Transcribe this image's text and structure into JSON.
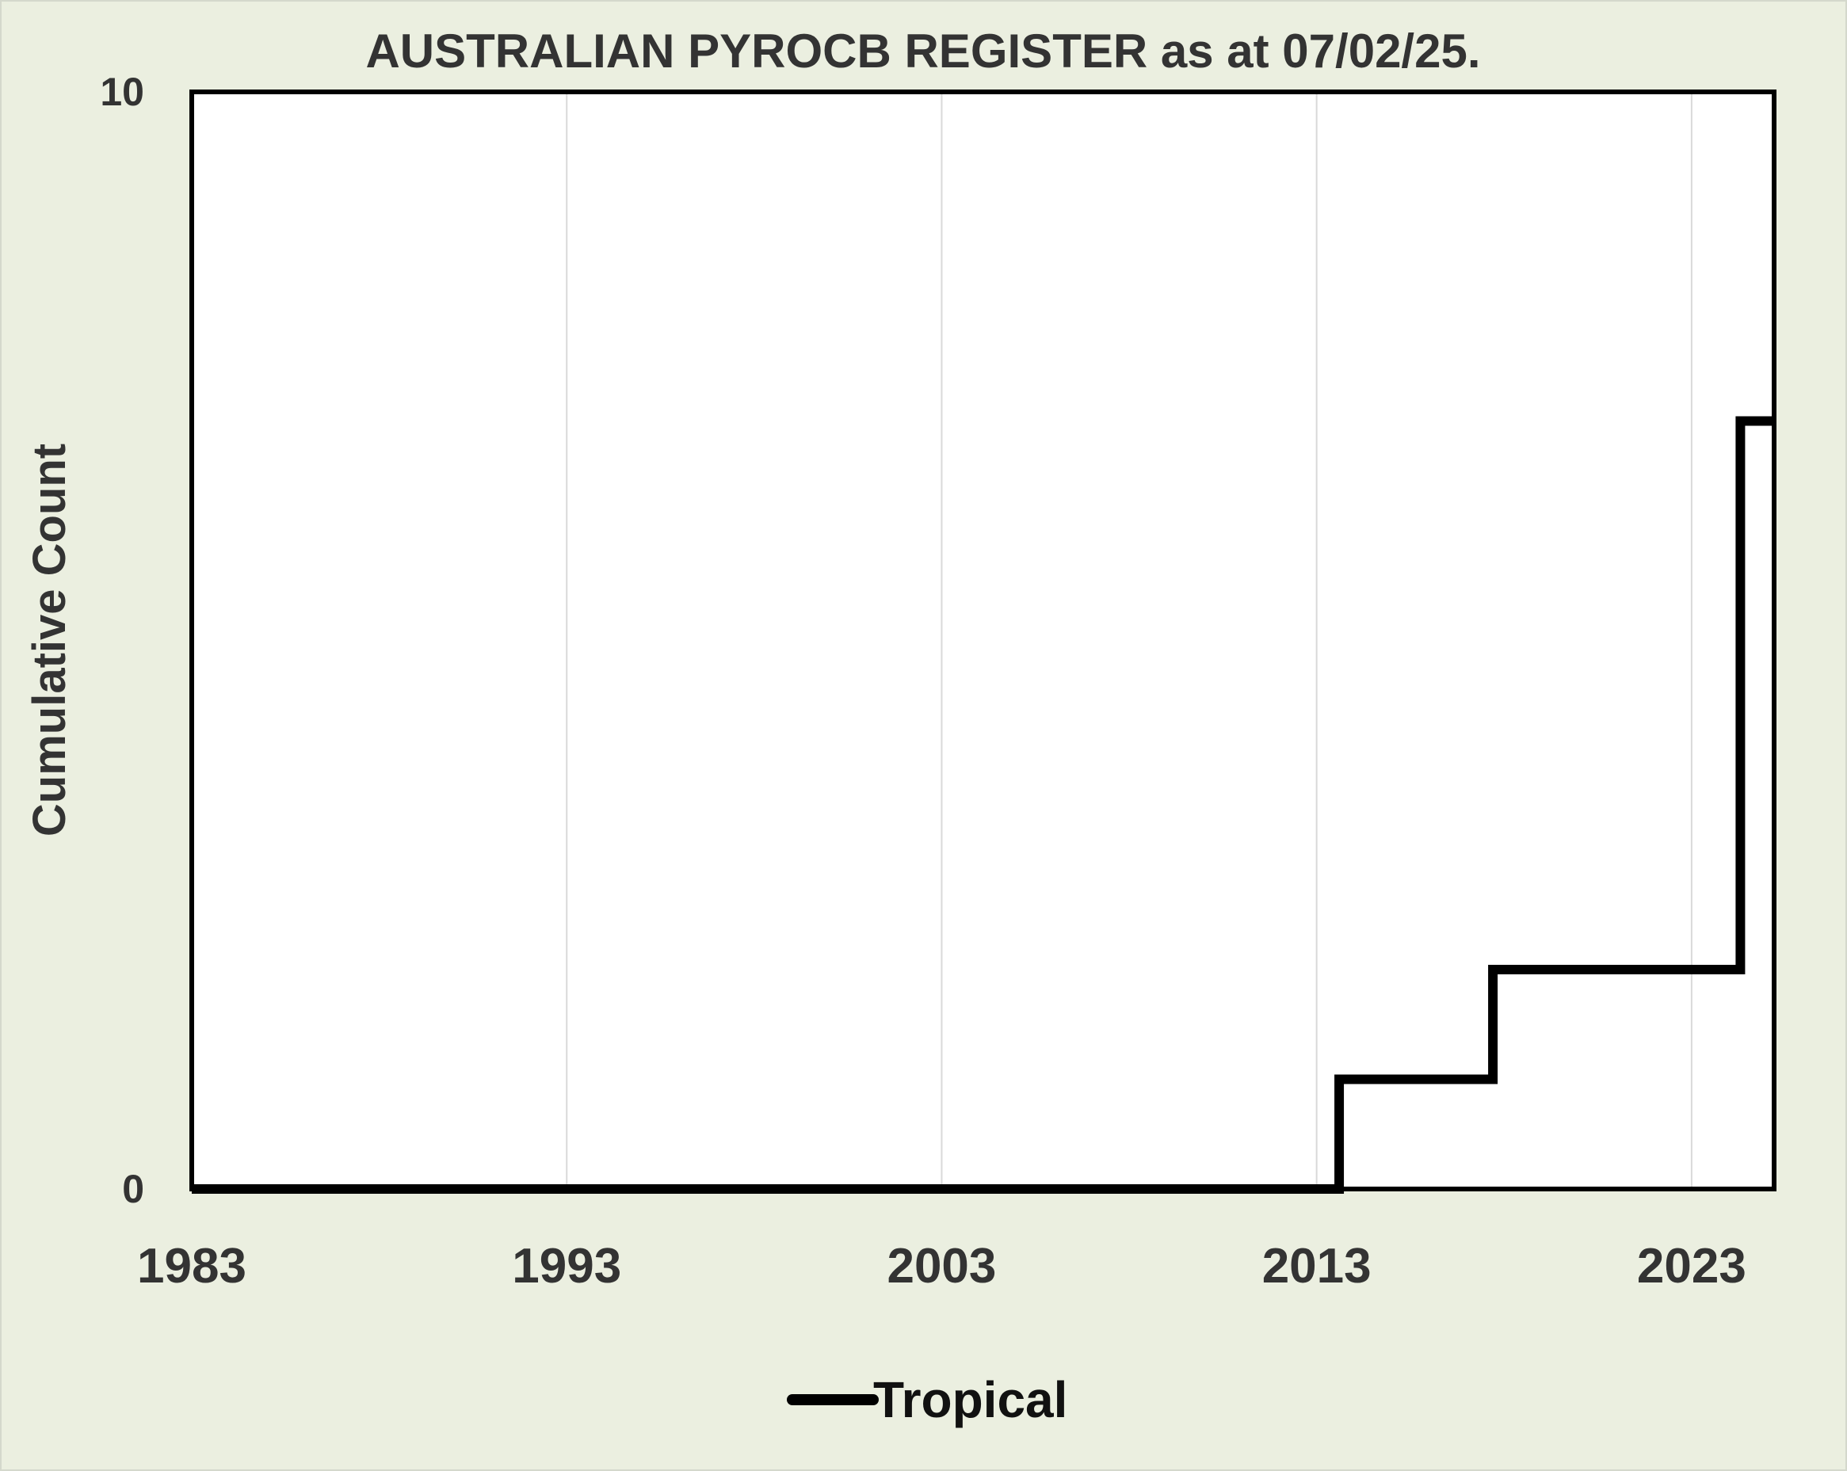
{
  "chart_data": {
    "type": "line",
    "title": "AUSTRALIAN PYROCB REGISTER as at 07/02/25.",
    "xlabel": "",
    "ylabel": "Cumulative Count",
    "xlim": [
      1983,
      2025.2
    ],
    "ylim": [
      0,
      10
    ],
    "x_ticks": [
      "1983",
      "1993",
      "2003",
      "2013",
      "2023"
    ],
    "y_ticks": [
      "0",
      "10"
    ],
    "grid": "vertical",
    "legend_position": "bottom",
    "series": [
      {
        "name": "Tropical",
        "color": "#000000",
        "step": true,
        "x": [
          1983,
          2013.6,
          2017.7,
          2024.0,
          2024.3,
          2025.2
        ],
        "y": [
          0,
          1,
          2,
          2,
          7,
          7
        ]
      }
    ]
  }
}
